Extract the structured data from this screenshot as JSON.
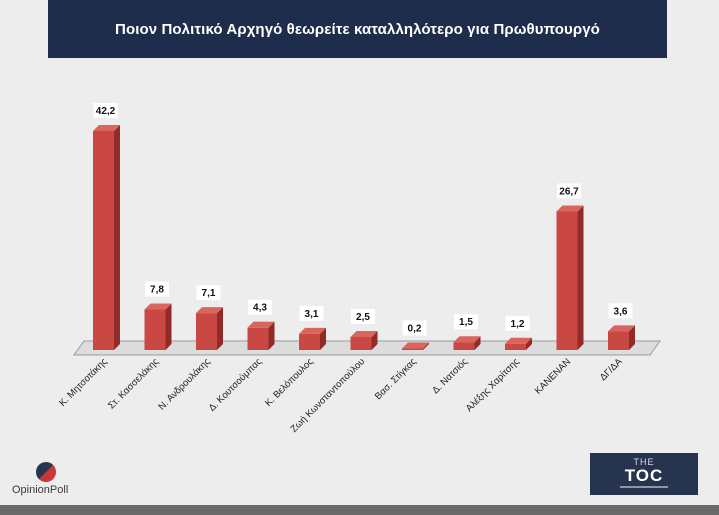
{
  "header": {
    "title": "Ποιον Πολιτικό Αρχηγό θεωρείτε καταλληλότερο για Πρωθυπουργό"
  },
  "chart_data": {
    "type": "bar",
    "title": "Ποιον Πολιτικό Αρχηγό θεωρείτε καταλληλότερο για Πρωθυπουργό",
    "categories": [
      "Κ. Μητσοτάκης",
      "Στ. Κασσελάκης",
      "Ν. Ανδρουλάκης",
      "Δ. Κουτσούμπας",
      "Κ. Βελόπουλος",
      "Ζωή Κωνσταντοπούλου",
      "Βασ. Στίγκας",
      "Δ. Νατσιός",
      "Αλέξης Χαρίτσης",
      "ΚΑΝΕΝΑΝ",
      "ΔΓ/ΔΑ"
    ],
    "values": [
      42.2,
      7.8,
      7.1,
      4.3,
      3.1,
      2.5,
      0.2,
      1.5,
      1.2,
      26.7,
      3.6
    ],
    "value_labels": [
      "42,2",
      "7,8",
      "7,1",
      "4,3",
      "3,1",
      "2,5",
      "0,2",
      "1,5",
      "1,2",
      "26,7",
      "3,6"
    ],
    "ylim": [
      0,
      42.2
    ],
    "grid": false,
    "legend": "none",
    "colors": {
      "bar_front": "#c94843",
      "bar_side": "#922a28",
      "bar_top": "#d96560",
      "floor": "#dcdcdc"
    }
  },
  "logos": {
    "left": "OpinionPoll",
    "right_top": "THE",
    "right_main": "TOC"
  }
}
